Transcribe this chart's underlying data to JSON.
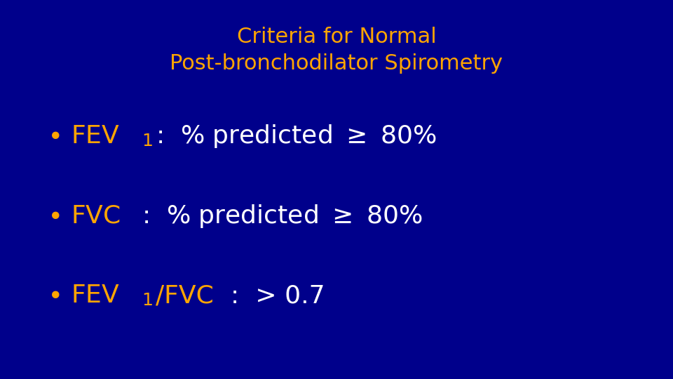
{
  "background_color": "#00008B",
  "title_line1": "Criteria for Normal",
  "title_line2": "Post-bronchodilator Spirometry",
  "title_color": "#FFA500",
  "title_fontsize": 22,
  "title_fontweight": "normal",
  "bullet_label_color": "#FFA500",
  "bullet_text_color": "#FFFFFF",
  "bullet_fontsize": 26,
  "fig_width": 9.6,
  "fig_height": 5.4,
  "dpi": 100
}
